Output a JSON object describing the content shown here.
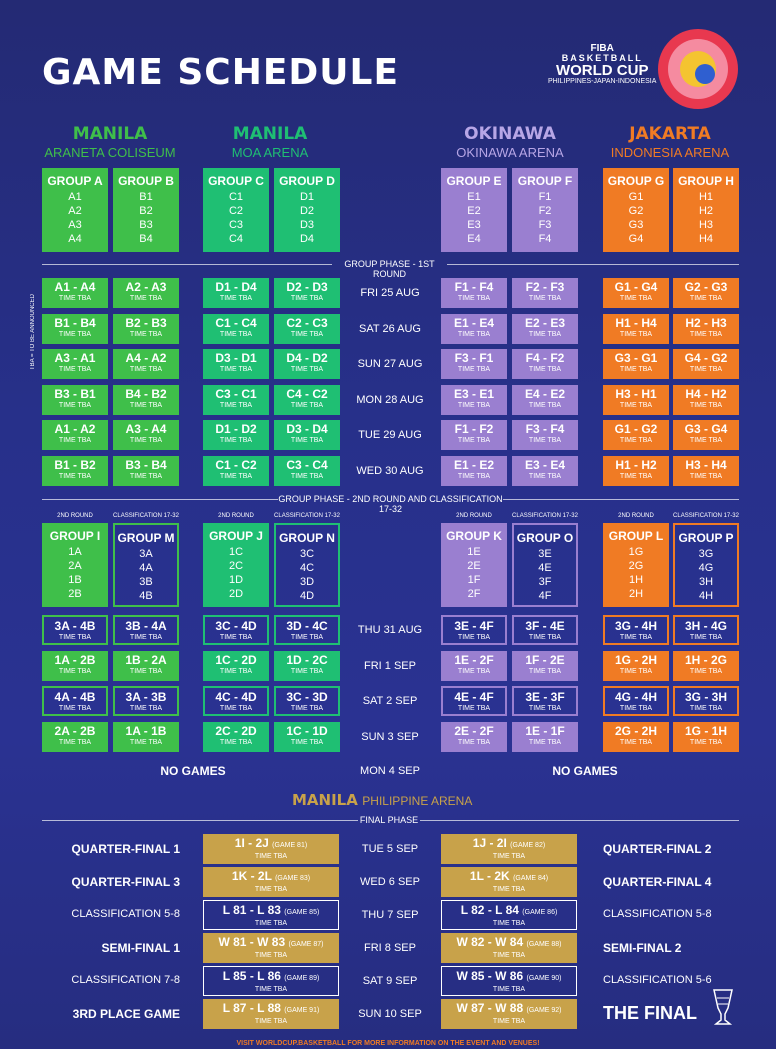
{
  "title": "GAME SCHEDULE",
  "logo": {
    "fiba": "FIBA",
    "basketball": "BASKETBALL",
    "worldcup": "WORLD CUP",
    "hosts": "PHILIPPINES-JAPAN-INDONESIA"
  },
  "venues": [
    {
      "city": "MANILA",
      "arena": "ARANETA COLISEUM",
      "color": "#3fbf4a"
    },
    {
      "city": "MANILA",
      "arena": "MOA ARENA",
      "color": "#1fbf73"
    },
    {
      "city": "OKINAWA",
      "arena": "OKINAWA ARENA",
      "color": "#b7a6e6"
    },
    {
      "city": "JAKARTA",
      "arena": "INDONESIA ARENA",
      "color": "#f07b24"
    }
  ],
  "groups": [
    {
      "name": "GROUP A",
      "teams": [
        "A1",
        "A2",
        "A3",
        "A4"
      ]
    },
    {
      "name": "GROUP B",
      "teams": [
        "B1",
        "B2",
        "B3",
        "B4"
      ]
    },
    {
      "name": "GROUP C",
      "teams": [
        "C1",
        "C2",
        "C3",
        "C4"
      ]
    },
    {
      "name": "GROUP D",
      "teams": [
        "D1",
        "D2",
        "D3",
        "D4"
      ]
    },
    {
      "name": "GROUP E",
      "teams": [
        "E1",
        "E2",
        "E3",
        "E4"
      ]
    },
    {
      "name": "GROUP F",
      "teams": [
        "F1",
        "F2",
        "F3",
        "F4"
      ]
    },
    {
      "name": "GROUP G",
      "teams": [
        "G1",
        "G2",
        "G3",
        "G4"
      ]
    },
    {
      "name": "GROUP H",
      "teams": [
        "H1",
        "H2",
        "H3",
        "H4"
      ]
    }
  ],
  "tba_label": "TIME TBA",
  "tba_side": "TBA = TO BE ANNOUNCED",
  "phase1_label": "GROUP PHASE - 1ST ROUND",
  "phase1_dates": [
    "FRI 25 AUG",
    "SAT 26 AUG",
    "SUN 27 AUG",
    "MON 28 AUG",
    "TUE 29 AUG",
    "WED 30 AUG"
  ],
  "phase1_rows": [
    [
      "A1 - A4",
      "A2 - A3",
      "D1 - D4",
      "D2 - D3",
      "F1 - F4",
      "F2 - F3",
      "G1 - G4",
      "G2 - G3"
    ],
    [
      "B1 - B4",
      "B2 - B3",
      "C1 - C4",
      "C2 - C3",
      "E1 - E4",
      "E2 - E3",
      "H1 - H4",
      "H2 - H3"
    ],
    [
      "A3 - A1",
      "A4 - A2",
      "D3 - D1",
      "D4 - D2",
      "F3 - F1",
      "F4 - F2",
      "G3 - G1",
      "G4 - G2"
    ],
    [
      "B3 - B1",
      "B4 - B2",
      "C3 - C1",
      "C4 - C2",
      "E3 - E1",
      "E4 - E2",
      "H3 - H1",
      "H4 - H2"
    ],
    [
      "A1 - A2",
      "A3 - A4",
      "D1 - D2",
      "D3 - D4",
      "F1 - F2",
      "F3 - F4",
      "G1 - G2",
      "G3 - G4"
    ],
    [
      "B1 - B2",
      "B3 - B4",
      "C1 - C2",
      "C3 - C4",
      "E1 - E2",
      "E3 - E4",
      "H1 - H2",
      "H3 - H4"
    ]
  ],
  "phase2_label": "GROUP PHASE - 2ND ROUND AND CLASSIFICATION 17-32",
  "round2_label": "2ND ROUND",
  "class_label": "CLASSIFICATION 17-32",
  "groups2": [
    {
      "name": "GROUP I",
      "teams": [
        "1A",
        "2A",
        "1B",
        "2B"
      ]
    },
    {
      "name": "GROUP M",
      "teams": [
        "3A",
        "4A",
        "3B",
        "4B"
      ]
    },
    {
      "name": "GROUP J",
      "teams": [
        "1C",
        "2C",
        "1D",
        "2D"
      ]
    },
    {
      "name": "GROUP N",
      "teams": [
        "3C",
        "4C",
        "3D",
        "4D"
      ]
    },
    {
      "name": "GROUP K",
      "teams": [
        "1E",
        "2E",
        "1F",
        "2F"
      ]
    },
    {
      "name": "GROUP O",
      "teams": [
        "3E",
        "4E",
        "3F",
        "4F"
      ]
    },
    {
      "name": "GROUP L",
      "teams": [
        "1G",
        "2G",
        "1H",
        "2H"
      ]
    },
    {
      "name": "GROUP P",
      "teams": [
        "3G",
        "4G",
        "3H",
        "4H"
      ]
    }
  ],
  "phase2_dates": [
    "THU 31 AUG",
    "FRI 1 SEP",
    "SAT 2 SEP",
    "SUN 3 SEP"
  ],
  "phase2_rows": [
    [
      "3A - 4B",
      "3B - 4A",
      "3C - 4D",
      "3D - 4C",
      "3E - 4F",
      "3F - 4E",
      "3G - 4H",
      "3H - 4G"
    ],
    [
      "1A - 2B",
      "1B - 2A",
      "1C - 2D",
      "1D - 2C",
      "1E - 2F",
      "1F - 2E",
      "1G - 2H",
      "1H - 2G"
    ],
    [
      "4A - 4B",
      "3A - 3B",
      "4C - 4D",
      "3C - 3D",
      "4E - 4F",
      "3E - 3F",
      "4G - 4H",
      "3G - 3H"
    ],
    [
      "2A - 2B",
      "1A - 1B",
      "2C - 2D",
      "1C - 1D",
      "2E - 2F",
      "1E - 1F",
      "2G - 2H",
      "1G - 1H"
    ]
  ],
  "no_games": "NO GAMES",
  "mon4": "MON 4 SEP",
  "final_venue": {
    "city": "MANILA",
    "arena": "PHILIPPINE ARENA"
  },
  "final_phase_label": "FINAL PHASE",
  "final_rows": [
    {
      "left": "QUARTER-FINAL 1",
      "lm": "1I - 2J",
      "lg": "(GAME 81)",
      "date": "TUE 5 SEP",
      "rm": "1J - 2I",
      "rg": "(GAME 82)",
      "right": "QUARTER-FINAL 2"
    },
    {
      "left": "QUARTER-FINAL 3",
      "lm": "1K - 2L",
      "lg": "(GAME 83)",
      "date": "WED 6 SEP",
      "rm": "1L - 2K",
      "rg": "(GAME 84)",
      "right": "QUARTER-FINAL 4"
    },
    {
      "left": "CLASSIFICATION 5-8",
      "lm": "L 81 - L 83",
      "lg": "(GAME 85)",
      "date": "THU 7 SEP",
      "rm": "L 82 - L 84",
      "rg": "(GAME 86)",
      "right": "CLASSIFICATION 5-8"
    },
    {
      "left": "SEMI-FINAL 1",
      "lm": "W 81 - W 83",
      "lg": "(GAME 87)",
      "date": "FRI 8 SEP",
      "rm": "W 82 - W 84",
      "rg": "(GAME 88)",
      "right": "SEMI-FINAL 2"
    },
    {
      "left": "CLASSIFICATION 7-8",
      "lm": "L 85 - L 86",
      "lg": "(GAME 89)",
      "date": "SAT 9 SEP",
      "rm": "W 85 - W 86",
      "rg": "(GAME 90)",
      "right": "CLASSIFICATION 5-6"
    },
    {
      "left": "3RD PLACE GAME",
      "lm": "L 87 - L 88",
      "lg": "(GAME 91)",
      "date": "SUN 10 SEP",
      "rm": "W 87 - W 88",
      "rg": "(GAME 92)",
      "right": "THE FINAL"
    }
  ],
  "footer": "VISIT WORLDCUP.BASKETBALL FOR MORE INFORMATION ON THE EVENT AND VENUES!"
}
